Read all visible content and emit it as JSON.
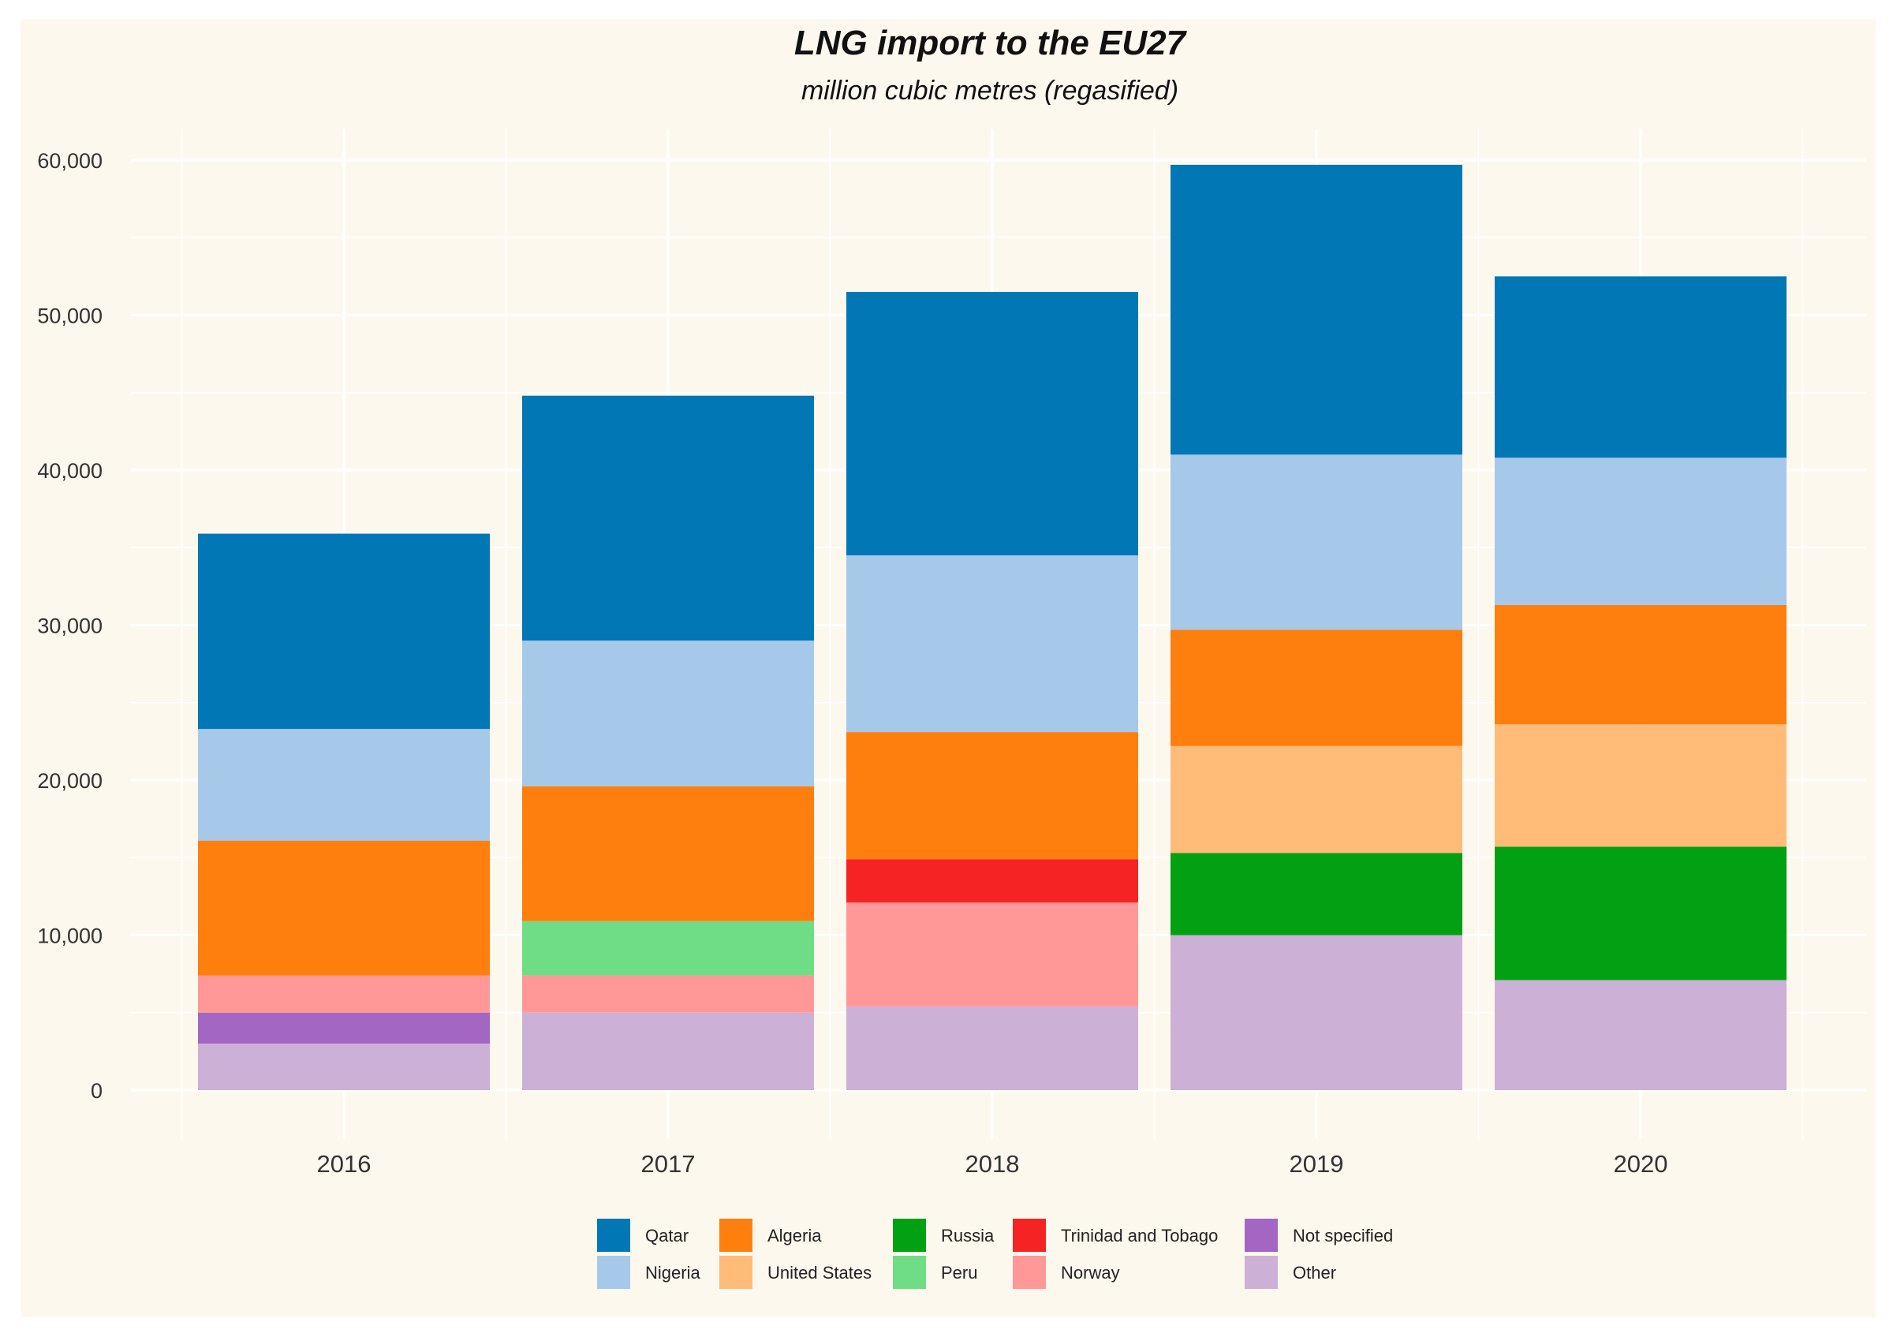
{
  "chart_data": {
    "type": "bar",
    "stacked": true,
    "title": "LNG import to the EU27",
    "subtitle": "million cubic metres (regasified)",
    "xlabel": "",
    "ylabel": "",
    "categories": [
      "2016",
      "2017",
      "2018",
      "2019",
      "2020"
    ],
    "ylim": [
      0,
      62000
    ],
    "yticks": [
      0,
      10000,
      20000,
      30000,
      40000,
      50000,
      60000
    ],
    "ytick_labels": [
      "0",
      "10,000",
      "20,000",
      "30,000",
      "40,000",
      "50,000",
      "60,000"
    ],
    "grid": true,
    "legend_position": "bottom",
    "series": [
      {
        "name": "Other",
        "color": "#cdb0d6",
        "values": [
          3000,
          5000,
          5400,
          10000,
          7100
        ]
      },
      {
        "name": "Not specified",
        "color": "#a366c2",
        "values": [
          2000,
          0,
          0,
          0,
          0
        ]
      },
      {
        "name": "Norway",
        "color": "#ff9896",
        "values": [
          2400,
          2400,
          6700,
          0,
          0
        ]
      },
      {
        "name": "Peru",
        "color": "#6fdd85",
        "values": [
          0,
          3500,
          0,
          0,
          0
        ]
      },
      {
        "name": "Trinidad and Tobago",
        "color": "#f52323",
        "values": [
          0,
          0,
          2800,
          0,
          0
        ]
      },
      {
        "name": "Russia",
        "color": "#02a013",
        "values": [
          0,
          0,
          0,
          5300,
          8600
        ]
      },
      {
        "name": "United States",
        "color": "#ffbb78",
        "values": [
          0,
          0,
          0,
          6900,
          7900
        ]
      },
      {
        "name": "Algeria",
        "color": "#ff7f0e",
        "values": [
          8700,
          8700,
          8200,
          7500,
          7700
        ]
      },
      {
        "name": "Nigeria",
        "color": "#a6c8e9",
        "values": [
          7200,
          9400,
          11400,
          11300,
          9500
        ]
      },
      {
        "name": "Qatar",
        "color": "#0177b6",
        "values": [
          12600,
          15800,
          17000,
          18700,
          11700
        ]
      }
    ],
    "legend": [
      {
        "name": "Qatar",
        "color": "#0177b6"
      },
      {
        "name": "Algeria",
        "color": "#ff7f0e"
      },
      {
        "name": "Russia",
        "color": "#02a013"
      },
      {
        "name": "Trinidad and Tobago",
        "color": "#f52323"
      },
      {
        "name": "Not specified",
        "color": "#a366c2"
      },
      {
        "name": "Nigeria",
        "color": "#a6c8e9"
      },
      {
        "name": "United States",
        "color": "#ffbb78"
      },
      {
        "name": "Peru",
        "color": "#6fdd85"
      },
      {
        "name": "Norway",
        "color": "#ff9896"
      },
      {
        "name": "Other",
        "color": "#cdb0d6"
      }
    ]
  }
}
